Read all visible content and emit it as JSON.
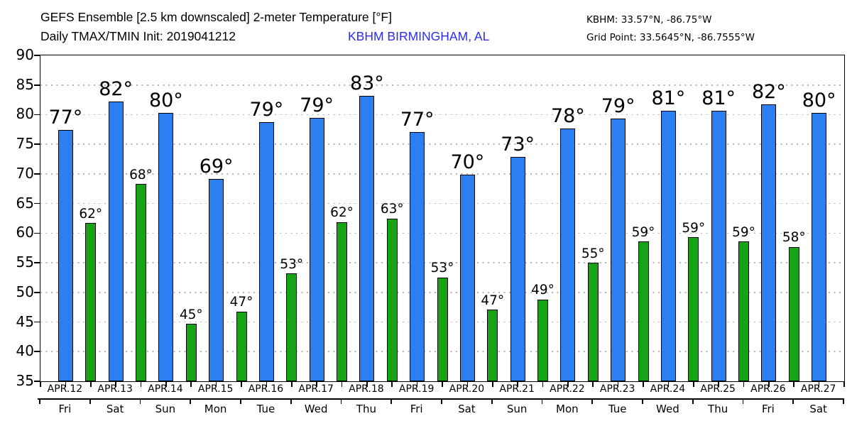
{
  "header": {
    "station_coords": "KBHM: 33.57°N, -86.75°W",
    "grid_point": "Grid Point: 33.5645°N, -86.7555°W"
  },
  "colors": {
    "tmax_bar": "#2b7ff0",
    "tmin_bar": "#16a316",
    "bar_border": "#000000",
    "station_text": "#2d2df0",
    "axis": "#000000",
    "gridline": "#b4b4b4",
    "background": "#ffffff"
  },
  "chart_data": {
    "type": "bar",
    "title": "GEFS Ensemble [2.5 km downscaled] 2-meter Temperature [°F]",
    "subtitle": "Daily TMAX/TMIN Init: 2019041212",
    "station": "KBHM BIRMINGHAM, AL",
    "ylabel": "",
    "xlabel": "",
    "ylim": [
      35,
      90
    ],
    "ytick_step": 5,
    "yticks": [
      35,
      40,
      45,
      50,
      55,
      60,
      65,
      70,
      75,
      80,
      85,
      90
    ],
    "grid": "horizontal-dotted",
    "legend_position": "none",
    "categories": [
      "APR.12",
      "APR.13",
      "APR.14",
      "APR.15",
      "APR.16",
      "APR.17",
      "APR.18",
      "APR.19",
      "APR.20",
      "APR.21",
      "APR.22",
      "APR.23",
      "APR.24",
      "APR.25",
      "APR.26",
      "APR.27"
    ],
    "weekdays": [
      "Fri",
      "Sat",
      "Sun",
      "Mon",
      "Tue",
      "Wed",
      "Thu",
      "Fri",
      "Sat",
      "Sun",
      "Mon",
      "Tue",
      "Wed",
      "Thu",
      "Fri",
      "Sat"
    ],
    "series": [
      {
        "name": "TMAX",
        "labels": [
          "77°",
          "82°",
          "80°",
          "69°",
          "79°",
          "79°",
          "83°",
          "77°",
          "70°",
          "73°",
          "78°",
          "79°",
          "81°",
          "81°",
          "82°",
          "80°"
        ],
        "values": [
          77,
          82,
          80,
          69,
          79,
          79,
          83,
          77,
          70,
          73,
          78,
          79,
          81,
          81,
          82,
          80
        ],
        "bar_values": [
          77.4,
          82.2,
          80.3,
          69.2,
          78.7,
          79.4,
          83.2,
          77.1,
          69.9,
          72.9,
          77.7,
          79.3,
          80.7,
          80.6,
          81.7,
          80.3
        ]
      },
      {
        "name": "TMIN",
        "labels": [
          "62°",
          "68°",
          "45°",
          "47°",
          "53°",
          "62°",
          "63°",
          "53°",
          "47°",
          "49°",
          "55°",
          "59°",
          "59°",
          "59°",
          "58°",
          null
        ],
        "values": [
          62,
          68,
          45,
          47,
          53,
          62,
          63,
          53,
          47,
          49,
          55,
          59,
          59,
          59,
          58,
          null
        ],
        "bar_values": [
          61.7,
          68.3,
          44.7,
          46.8,
          53.2,
          61.9,
          62.5,
          52.5,
          47.1,
          48.8,
          55.0,
          58.6,
          59.3,
          58.6,
          57.7,
          null
        ]
      }
    ]
  }
}
